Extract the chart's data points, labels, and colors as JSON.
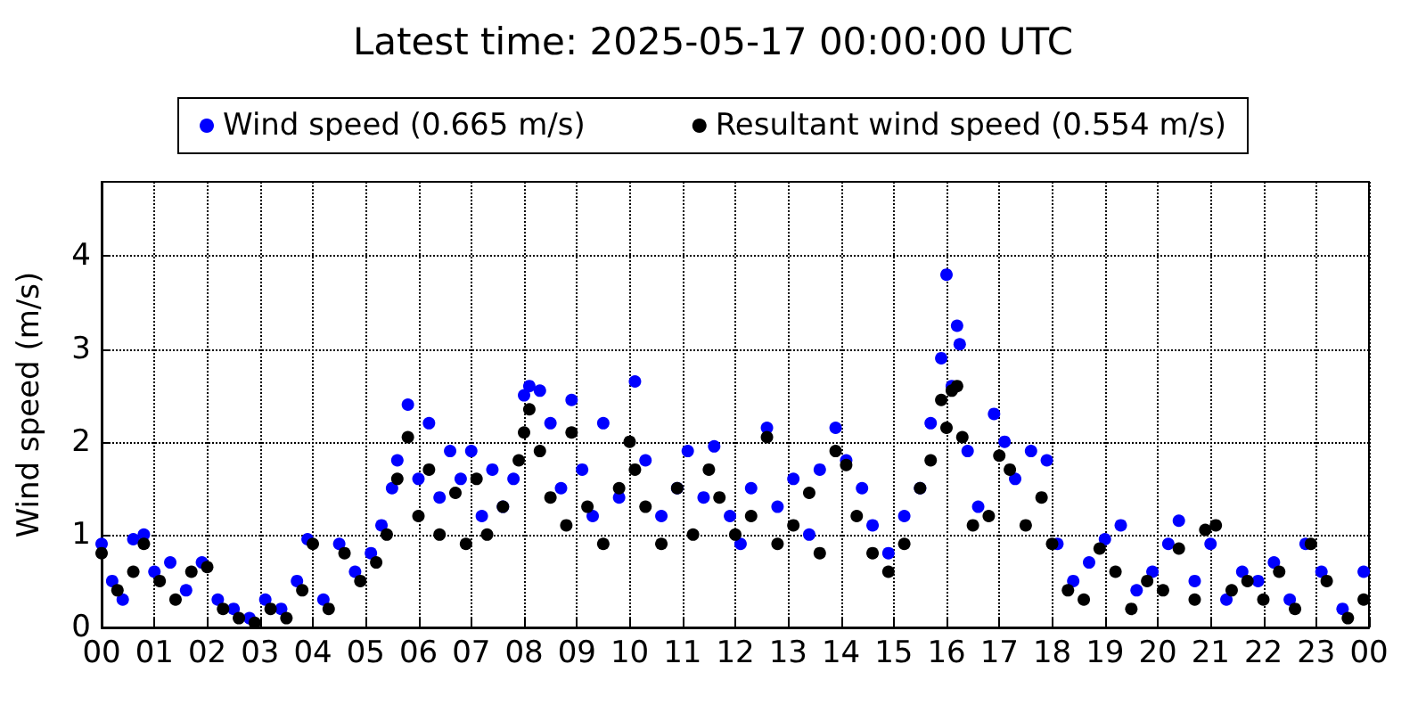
{
  "chart_data": {
    "type": "scatter",
    "title": "Latest time: 2025-05-17 00:00:00 UTC",
    "ylabel": "Wind speed (m/s)",
    "xlim": [
      0,
      24
    ],
    "ylim": [
      0,
      4.8
    ],
    "xticks": [
      {
        "value": 0,
        "label": "00"
      },
      {
        "value": 1,
        "label": "01"
      },
      {
        "value": 2,
        "label": "02"
      },
      {
        "value": 3,
        "label": "03"
      },
      {
        "value": 4,
        "label": "04"
      },
      {
        "value": 5,
        "label": "05"
      },
      {
        "value": 6,
        "label": "06"
      },
      {
        "value": 7,
        "label": "07"
      },
      {
        "value": 8,
        "label": "08"
      },
      {
        "value": 9,
        "label": "09"
      },
      {
        "value": 10,
        "label": "10"
      },
      {
        "value": 11,
        "label": "11"
      },
      {
        "value": 12,
        "label": "12"
      },
      {
        "value": 13,
        "label": "13"
      },
      {
        "value": 14,
        "label": "14"
      },
      {
        "value": 15,
        "label": "15"
      },
      {
        "value": 16,
        "label": "16"
      },
      {
        "value": 17,
        "label": "17"
      },
      {
        "value": 18,
        "label": "18"
      },
      {
        "value": 19,
        "label": "19"
      },
      {
        "value": 20,
        "label": "20"
      },
      {
        "value": 21,
        "label": "21"
      },
      {
        "value": 22,
        "label": "22"
      },
      {
        "value": 23,
        "label": "23"
      },
      {
        "value": 24,
        "label": "00"
      }
    ],
    "yticks": [
      0,
      1,
      2,
      3,
      4
    ],
    "grid": true,
    "legend": "top",
    "marker": "circle",
    "series": [
      {
        "name": "Wind speed (0.665 m/s)",
        "color": "#0000ff",
        "x": [
          0.0,
          0.2,
          0.4,
          0.6,
          0.8,
          1.0,
          1.3,
          1.6,
          1.9,
          2.2,
          2.5,
          2.8,
          3.1,
          3.4,
          3.7,
          3.9,
          4.2,
          4.5,
          4.8,
          5.1,
          5.3,
          5.5,
          5.6,
          5.8,
          6.0,
          6.2,
          6.4,
          6.6,
          6.8,
          7.0,
          7.2,
          7.4,
          7.6,
          7.8,
          8.0,
          8.1,
          8.3,
          8.5,
          8.7,
          8.9,
          9.1,
          9.3,
          9.5,
          9.8,
          10.1,
          10.3,
          10.6,
          10.9,
          11.1,
          11.4,
          11.6,
          11.9,
          12.1,
          12.3,
          12.6,
          12.8,
          13.1,
          13.4,
          13.6,
          13.9,
          14.1,
          14.4,
          14.6,
          14.9,
          15.2,
          15.5,
          15.7,
          15.9,
          16.0,
          16.1,
          16.2,
          16.25,
          16.4,
          16.6,
          16.9,
          17.1,
          17.3,
          17.6,
          17.9,
          18.1,
          18.4,
          18.7,
          19.0,
          19.3,
          19.6,
          19.9,
          20.2,
          20.4,
          20.7,
          21.0,
          21.3,
          21.6,
          21.9,
          22.2,
          22.5,
          22.8,
          23.1,
          23.5,
          23.9
        ],
        "values": [
          0.9,
          0.5,
          0.3,
          0.95,
          1.0,
          0.6,
          0.7,
          0.4,
          0.7,
          0.3,
          0.2,
          0.1,
          0.3,
          0.2,
          0.5,
          0.95,
          0.3,
          0.9,
          0.6,
          0.8,
          1.1,
          1.5,
          1.8,
          2.4,
          1.6,
          2.2,
          1.4,
          1.9,
          1.6,
          1.9,
          1.2,
          1.7,
          1.3,
          1.6,
          2.5,
          2.6,
          2.55,
          2.2,
          1.5,
          2.45,
          1.7,
          1.2,
          2.2,
          1.4,
          2.65,
          1.8,
          1.2,
          1.5,
          1.9,
          1.4,
          1.95,
          1.2,
          0.9,
          1.5,
          2.15,
          1.3,
          1.6,
          1.0,
          1.7,
          2.15,
          1.8,
          1.5,
          1.1,
          0.8,
          1.2,
          1.5,
          2.2,
          2.9,
          3.8,
          2.6,
          3.25,
          3.05,
          1.9,
          1.3,
          2.3,
          2.0,
          1.6,
          1.9,
          1.8,
          0.9,
          0.5,
          0.7,
          0.95,
          1.1,
          0.4,
          0.6,
          0.9,
          1.15,
          0.5,
          0.9,
          0.3,
          0.6,
          0.5,
          0.7,
          0.3,
          0.9,
          0.6,
          0.2,
          0.6
        ]
      },
      {
        "name": "Resultant wind speed (0.554 m/s)",
        "color": "#000000",
        "x": [
          0.0,
          0.3,
          0.6,
          0.8,
          1.1,
          1.4,
          1.7,
          2.0,
          2.3,
          2.6,
          2.9,
          3.2,
          3.5,
          3.8,
          4.0,
          4.3,
          4.6,
          4.9,
          5.2,
          5.4,
          5.6,
          5.8,
          6.0,
          6.2,
          6.4,
          6.7,
          6.9,
          7.1,
          7.3,
          7.6,
          7.9,
          8.0,
          8.1,
          8.3,
          8.5,
          8.8,
          8.9,
          9.2,
          9.5,
          9.8,
          10.0,
          10.1,
          10.3,
          10.6,
          10.9,
          11.2,
          11.5,
          11.7,
          12.0,
          12.3,
          12.6,
          12.8,
          13.1,
          13.4,
          13.6,
          13.9,
          14.1,
          14.3,
          14.6,
          14.9,
          15.2,
          15.5,
          15.7,
          15.9,
          16.0,
          16.1,
          16.2,
          16.3,
          16.5,
          16.8,
          17.0,
          17.2,
          17.5,
          17.8,
          18.0,
          18.3,
          18.6,
          18.9,
          19.2,
          19.5,
          19.8,
          20.1,
          20.4,
          20.7,
          20.9,
          21.1,
          21.4,
          21.7,
          22.0,
          22.3,
          22.6,
          22.9,
          23.2,
          23.6,
          23.9
        ],
        "values": [
          0.8,
          0.4,
          0.6,
          0.9,
          0.5,
          0.3,
          0.6,
          0.65,
          0.2,
          0.1,
          0.05,
          0.2,
          0.1,
          0.4,
          0.9,
          0.2,
          0.8,
          0.5,
          0.7,
          1.0,
          1.6,
          2.05,
          1.2,
          1.7,
          1.0,
          1.45,
          0.9,
          1.6,
          1.0,
          1.3,
          1.8,
          2.1,
          2.35,
          1.9,
          1.4,
          1.1,
          2.1,
          1.3,
          0.9,
          1.5,
          2.0,
          1.7,
          1.3,
          0.9,
          1.5,
          1.0,
          1.7,
          1.4,
          1.0,
          1.2,
          2.05,
          0.9,
          1.1,
          1.45,
          0.8,
          1.9,
          1.75,
          1.2,
          0.8,
          0.6,
          0.9,
          1.5,
          1.8,
          2.45,
          2.15,
          2.55,
          2.6,
          2.05,
          1.1,
          1.2,
          1.85,
          1.7,
          1.1,
          1.4,
          0.9,
          0.4,
          0.3,
          0.85,
          0.6,
          0.2,
          0.5,
          0.4,
          0.85,
          0.3,
          1.05,
          1.1,
          0.4,
          0.5,
          0.3,
          0.6,
          0.2,
          0.9,
          0.5,
          0.1,
          0.3
        ]
      }
    ]
  }
}
